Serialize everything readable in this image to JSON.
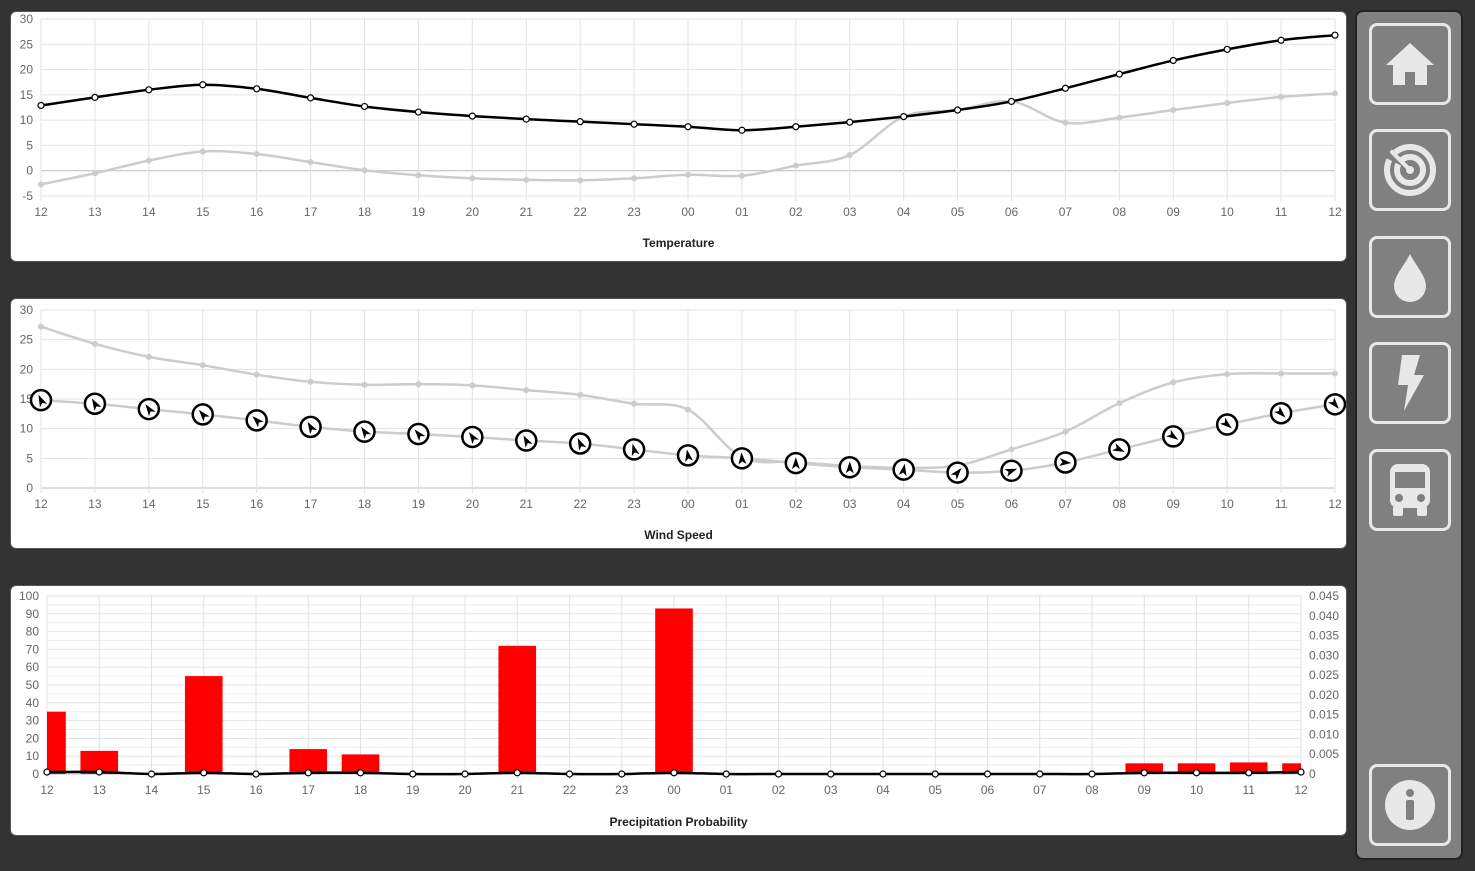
{
  "colors": {
    "background": "#333333",
    "panel": "#ffffff",
    "primary_line": "#000000",
    "secondary_line": "#cccccc",
    "bar": "#ff0000",
    "sidebar": "#808080"
  },
  "sidebar": {
    "items": [
      {
        "name": "home",
        "icon": "home-icon"
      },
      {
        "name": "radar",
        "icon": "radar-icon"
      },
      {
        "name": "precipitation",
        "icon": "water-drop-icon"
      },
      {
        "name": "lightning",
        "icon": "lightning-icon"
      },
      {
        "name": "bus",
        "icon": "bus-icon"
      }
    ],
    "info": {
      "name": "info",
      "icon": "info-icon"
    }
  },
  "chart_data": [
    {
      "type": "line",
      "title": "Temperature",
      "x": [
        "12",
        "13",
        "14",
        "15",
        "16",
        "17",
        "18",
        "19",
        "20",
        "21",
        "22",
        "23",
        "00",
        "01",
        "02",
        "03",
        "04",
        "05",
        "06",
        "07",
        "08",
        "09",
        "10",
        "11",
        "12"
      ],
      "ylim": [
        -5,
        30
      ],
      "yticks": [
        -5,
        0,
        5,
        10,
        15,
        20,
        25,
        30
      ],
      "grid": true,
      "series": [
        {
          "color": "#000000",
          "values": [
            12.9,
            14.5,
            16.0,
            17.0,
            16.2,
            14.4,
            12.7,
            11.6,
            10.8,
            10.2,
            9.7,
            9.2,
            8.7,
            8.0,
            8.7,
            9.6,
            10.7,
            12.0,
            13.7,
            16.3,
            19.1,
            21.8,
            24.0,
            25.8,
            26.8
          ]
        },
        {
          "color": "#cccccc",
          "values": [
            -2.7,
            -0.5,
            2.0,
            3.8,
            3.3,
            1.7,
            0.1,
            -0.9,
            -1.5,
            -1.8,
            -1.9,
            -1.5,
            -0.8,
            -1.0,
            1.0,
            3.1,
            10.7,
            12.0,
            13.7,
            9.5,
            10.5,
            12.0,
            13.4,
            14.6,
            15.3
          ]
        }
      ]
    },
    {
      "type": "line",
      "title": "Wind Speed",
      "x": [
        "12",
        "13",
        "14",
        "15",
        "16",
        "17",
        "18",
        "19",
        "20",
        "21",
        "22",
        "23",
        "00",
        "01",
        "02",
        "03",
        "04",
        "05",
        "06",
        "07",
        "08",
        "09",
        "10",
        "11",
        "12"
      ],
      "ylim": [
        0,
        30
      ],
      "yticks": [
        0,
        5,
        10,
        15,
        20,
        25,
        30
      ],
      "grid": true,
      "series": [
        {
          "color": "#cccccc",
          "values": [
            27.2,
            24.3,
            22.1,
            20.7,
            19.1,
            17.9,
            17.4,
            17.5,
            17.3,
            16.5,
            15.7,
            14.2,
            13.2,
            5.2,
            4.4,
            3.7,
            3.4,
            3.8,
            6.5,
            9.5,
            14.3,
            17.8,
            19.2,
            19.3,
            19.3
          ]
        },
        {
          "color": "#cccccc",
          "marker": "wind-direction-arrow",
          "values": [
            14.8,
            14.2,
            13.3,
            12.4,
            11.4,
            10.3,
            9.5,
            9.1,
            8.6,
            8.0,
            7.5,
            6.5,
            5.5,
            5.0,
            4.2,
            3.5,
            3.1,
            2.6,
            2.9,
            4.3,
            6.5,
            8.7,
            10.7,
            12.6,
            14.1
          ],
          "direction_deg": [
            -25,
            -30,
            -35,
            -40,
            -45,
            -30,
            -35,
            -40,
            -35,
            -28,
            -25,
            -15,
            -10,
            -5,
            0,
            0,
            10,
            40,
            70,
            95,
            115,
            125,
            130,
            135,
            140
          ]
        }
      ]
    },
    {
      "type": "bar",
      "title": "Precipitation Probability",
      "categories": [
        "12",
        "13",
        "14",
        "15",
        "16",
        "17",
        "18",
        "19",
        "20",
        "21",
        "22",
        "23",
        "00",
        "01",
        "02",
        "03",
        "04",
        "05",
        "06",
        "07",
        "08",
        "09",
        "10",
        "11",
        "12"
      ],
      "ylim": [
        0,
        100
      ],
      "yticks": [
        0,
        10,
        20,
        30,
        40,
        50,
        60,
        70,
        80,
        90,
        100
      ],
      "y2lim": [
        0,
        0.045
      ],
      "y2ticks": [
        "0",
        "0.005",
        "0.010",
        "0.015",
        "0.020",
        "0.025",
        "0.030",
        "0.035",
        "0.040",
        "0.045"
      ],
      "grid": true,
      "series": [
        {
          "color": "#ff0000",
          "axis": "left",
          "values": [
            35,
            13,
            0,
            55,
            0,
            14,
            11,
            0,
            0,
            72,
            0,
            0,
            93,
            0,
            0,
            0,
            0,
            0,
            0,
            0,
            0,
            6,
            6,
            6.5,
            6
          ]
        },
        {
          "type": "line",
          "color": "#000000",
          "axis": "right",
          "values": [
            0.0005,
            0.0005,
            0,
            0.0003,
            0,
            0.0003,
            0.0003,
            0,
            0,
            0.0003,
            0,
            0,
            0.0003,
            0,
            0,
            0,
            0,
            0,
            0,
            0,
            0,
            0.0003,
            0.0003,
            0.0003,
            0.0005
          ]
        }
      ]
    }
  ]
}
